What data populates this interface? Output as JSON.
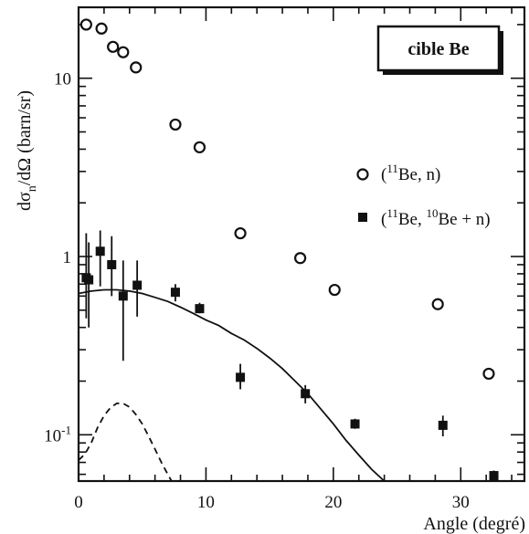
{
  "chart_data": {
    "type": "scatter",
    "title": "",
    "xlabel": "Angle (degré)",
    "ylabel": "dσn/dΩ  (barn/sr)",
    "ylabel_parts": {
      "main": "dσ",
      "sub": "n",
      "rest": "/dΩ  (barn/sr)"
    },
    "x_scale": "linear",
    "y_scale": "log",
    "xlim": [
      0,
      35
    ],
    "ylim": [
      0.055,
      25
    ],
    "x_ticks": [
      0,
      10,
      20,
      30
    ],
    "x_tick_labels": [
      "0",
      "10",
      "20",
      "30"
    ],
    "y_ticks": [
      0.1,
      1,
      10
    ],
    "y_tick_labels": [
      {
        "base": "10",
        "sup": "-1"
      },
      {
        "base": "1",
        "sup": ""
      },
      {
        "base": "10",
        "sup": ""
      }
    ],
    "annotation_box": "cible Be",
    "legend_position": "right",
    "series": [
      {
        "id": "open",
        "marker": "open-circle",
        "legend": {
          "pre": "(",
          "sup": "11",
          "post": "Be, n)"
        },
        "x": [
          0.6,
          1.8,
          2.7,
          3.5,
          4.5,
          7.6,
          9.5,
          12.7,
          17.4,
          20.1,
          28.2,
          32.2
        ],
        "y": [
          20.0,
          19.0,
          15.0,
          14.0,
          11.5,
          5.5,
          4.1,
          1.35,
          0.98,
          0.65,
          0.54,
          0.22
        ]
      },
      {
        "id": "filled",
        "marker": "filled-square",
        "legend": {
          "pre": "(",
          "sup": "11",
          "mid": "Be, ",
          "sup2": "10",
          "post": "Be + n)"
        },
        "x": [
          0.6,
          0.8,
          1.7,
          2.6,
          3.5,
          4.6,
          7.6,
          9.5,
          12.7,
          17.8,
          21.7,
          28.6,
          32.6
        ],
        "y": [
          0.76,
          0.74,
          1.07,
          0.9,
          0.6,
          0.69,
          0.63,
          0.51,
          0.21,
          0.17,
          0.115,
          0.113,
          0.059
        ],
        "y_low": [
          0.45,
          0.4,
          0.68,
          0.6,
          0.26,
          0.46,
          0.56,
          0.48,
          0.18,
          0.15,
          0.108,
          0.098,
          0.055
        ],
        "y_high": [
          1.35,
          1.2,
          1.4,
          1.3,
          0.95,
          0.95,
          0.7,
          0.55,
          0.25,
          0.19,
          0.123,
          0.128,
          0.063
        ]
      }
    ],
    "curves": [
      {
        "id": "solid-curve",
        "style": "solid",
        "x": [
          0,
          1,
          2,
          3,
          4,
          5,
          6,
          7,
          8,
          9,
          10,
          11,
          12,
          13,
          14,
          15,
          16,
          17,
          18,
          19,
          20,
          21,
          22,
          23,
          24
        ],
        "y": [
          0.62,
          0.64,
          0.65,
          0.65,
          0.64,
          0.62,
          0.59,
          0.56,
          0.52,
          0.48,
          0.44,
          0.41,
          0.37,
          0.34,
          0.305,
          0.27,
          0.235,
          0.2,
          0.17,
          0.14,
          0.115,
          0.093,
          0.077,
          0.064,
          0.055
        ]
      },
      {
        "id": "dashed-curve",
        "style": "dashed",
        "x": [
          0,
          0.5,
          1,
          1.5,
          2,
          2.5,
          3,
          3.5,
          4,
          4.5,
          5,
          5.5,
          6,
          6.5,
          7,
          7.3
        ],
        "y": [
          0.072,
          0.078,
          0.09,
          0.11,
          0.128,
          0.142,
          0.15,
          0.15,
          0.143,
          0.13,
          0.115,
          0.098,
          0.083,
          0.07,
          0.06,
          0.055
        ]
      }
    ]
  }
}
